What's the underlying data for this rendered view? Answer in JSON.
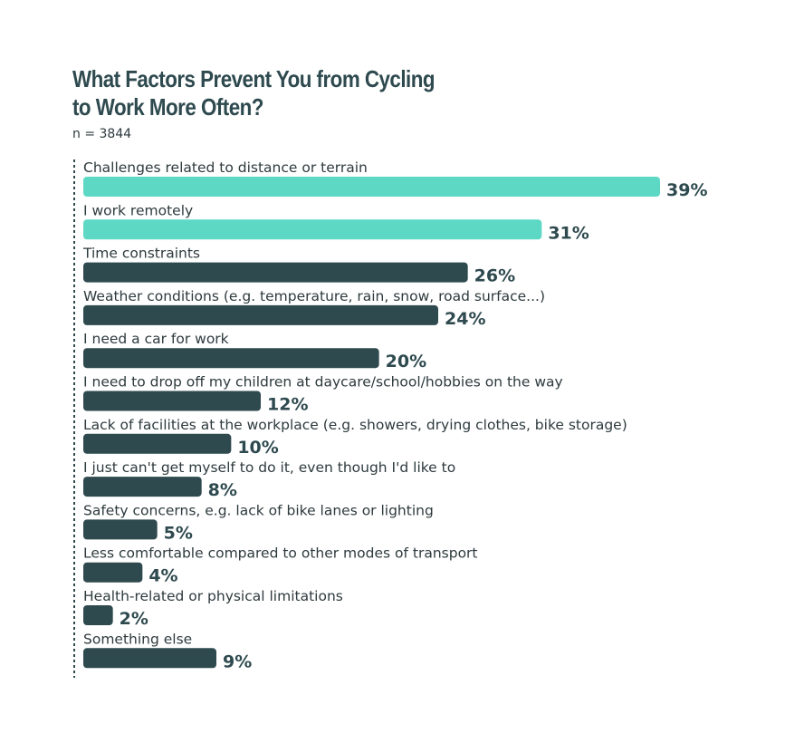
{
  "title": "What Factors Prevent You from Cycling to Work More Often?",
  "subtitle": "n = 3844",
  "colors": {
    "highlight": "#5dd8c5",
    "default": "#2f4a4f",
    "axis": "#2f4a4f"
  },
  "chart_data": {
    "type": "bar",
    "orientation": "horizontal",
    "unit": "%",
    "xlim": [
      0,
      39
    ],
    "grid": false,
    "legend": "none",
    "categories": [
      "Challenges related to distance or terrain",
      "I work remotely",
      "Time constraints",
      "Weather conditions (e.g. temperature, rain, snow, road surface...)",
      "I need a car for work",
      "I need to drop off my children at daycare/school/hobbies on the way",
      "Lack of facilities at the workplace (e.g. showers, drying clothes, bike storage)",
      "I just can't get myself to do it, even though I'd like to",
      "Safety concerns, e.g. lack of bike lanes or lighting",
      "Less comfortable compared to other modes of transport",
      "Health-related or physical limitations",
      "Something else"
    ],
    "values": [
      39,
      31,
      26,
      24,
      20,
      12,
      10,
      8,
      5,
      4,
      2,
      9
    ],
    "value_labels": [
      "39%",
      "31%",
      "26%",
      "24%",
      "20%",
      "12%",
      "10%",
      "8%",
      "5%",
      "4%",
      "2%",
      "9%"
    ],
    "highlighted": [
      true,
      true,
      false,
      false,
      false,
      false,
      false,
      false,
      false,
      false,
      false,
      false
    ]
  }
}
